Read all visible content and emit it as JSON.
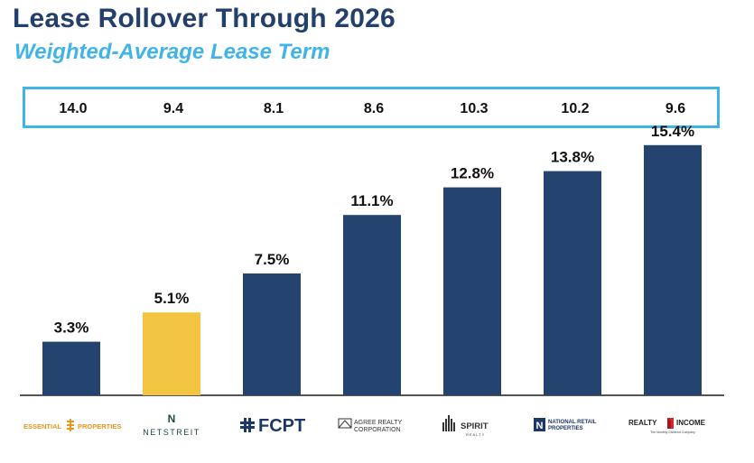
{
  "header": {
    "title": "Lease Rollover Through 2026",
    "subtitle": "Weighted-Average Lease Term"
  },
  "wal_values": [
    "14.0",
    "9.4",
    "8.1",
    "8.6",
    "10.3",
    "10.2",
    "9.6"
  ],
  "colors": {
    "title": "#22406b",
    "subtitle": "#40b4e8",
    "bar": "#24436f",
    "bar_highlight": "#f1c542",
    "axis": "#555555"
  },
  "chart_data": {
    "type": "bar",
    "categories": [
      "Essential Properties",
      "NetSTREIT",
      "FCPT",
      "Agree Realty Corporation",
      "Spirit Realty",
      "National Retail Properties",
      "Realty Income"
    ],
    "values": [
      3.3,
      5.1,
      7.5,
      11.1,
      12.8,
      13.8,
      15.4
    ],
    "data_labels": [
      "3.3%",
      "5.1%",
      "7.5%",
      "11.1%",
      "12.8%",
      "13.8%",
      "15.4%"
    ],
    "highlight_index": 1,
    "ylim": [
      0,
      16
    ],
    "grid": false,
    "xlabel": "",
    "ylabel": ""
  },
  "logos": [
    {
      "icon": "essential-properties-logo",
      "text_left": "ESSENTIAL",
      "text_right": "PROPERTIES",
      "color": "#e8961e"
    },
    {
      "icon": "netstreit-logo",
      "mark": "N",
      "text": "NETSTREIT",
      "color": "#1b4a4a"
    },
    {
      "icon": "fcpt-logo",
      "text": "FCPT",
      "color": "#1e3766"
    },
    {
      "icon": "agree-realty-logo",
      "text_top": "AGREE REALTY",
      "text_bottom": "CORPORATION",
      "color": "#333333"
    },
    {
      "icon": "spirit-realty-logo",
      "text": "SPIRIT",
      "subtext": "REALTY",
      "color": "#333333"
    },
    {
      "icon": "national-retail-properties-logo",
      "text_top": "NATIONAL RETAIL",
      "text_mid": "PROPERTIES",
      "color": "#1e3766"
    },
    {
      "icon": "realty-income-logo",
      "text_left": "REALTY",
      "text_right": "INCOME",
      "tagline": "The Monthly Dividend Company",
      "color": "#222222"
    }
  ]
}
